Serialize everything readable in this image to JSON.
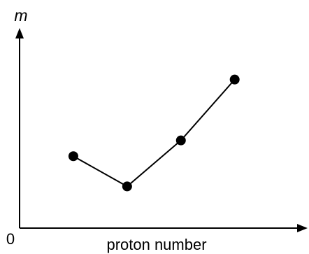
{
  "chart_data": {
    "type": "line",
    "title": "",
    "xlabel": "proton number",
    "ylabel": "m",
    "origin_label": "0",
    "x": [
      1,
      2,
      3,
      4
    ],
    "series": [
      {
        "values": [
          1.5,
          0.87,
          1.83,
          3.1
        ]
      }
    ],
    "xlim": [
      0,
      5.2
    ],
    "ylim": [
      0,
      4
    ],
    "grid": false,
    "legend": "none",
    "colors": {
      "line": "#000000",
      "marker": "#000000",
      "axis": "#000000"
    }
  }
}
